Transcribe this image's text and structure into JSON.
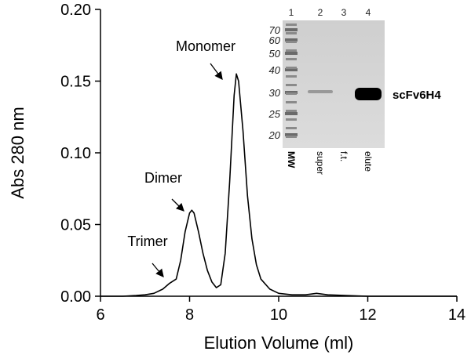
{
  "chart_data": {
    "type": "line",
    "x_label": "Elution Volume (ml)",
    "y_label": "Abs 280 nm",
    "x": [
      6,
      6.5,
      6.8,
      7.0,
      7.2,
      7.4,
      7.55,
      7.7,
      7.8,
      7.9,
      8.0,
      8.05,
      8.1,
      8.2,
      8.3,
      8.4,
      8.5,
      8.6,
      8.7,
      8.8,
      8.9,
      9.0,
      9.05,
      9.1,
      9.2,
      9.3,
      9.4,
      9.5,
      9.6,
      9.8,
      10.0,
      10.3,
      10.6,
      10.85,
      11.1,
      11.5,
      12,
      13,
      14
    ],
    "values": [
      0,
      0,
      0.0005,
      0.001,
      0.002,
      0.005,
      0.009,
      0.012,
      0.025,
      0.045,
      0.058,
      0.06,
      0.058,
      0.045,
      0.03,
      0.018,
      0.01,
      0.006,
      0.008,
      0.03,
      0.08,
      0.14,
      0.155,
      0.15,
      0.115,
      0.07,
      0.04,
      0.022,
      0.012,
      0.005,
      0.002,
      0.001,
      0.001,
      0.002,
      0.001,
      0.0005,
      0,
      0,
      0
    ],
    "color": "#000000",
    "xlim": [
      6,
      14
    ],
    "xticks": [
      6,
      8,
      10,
      12,
      14
    ],
    "ylim": [
      0,
      0.2
    ],
    "yticks": [
      {
        "value": 0,
        "label": "0.00"
      },
      {
        "value": 0.05,
        "label": "0.05"
      },
      {
        "value": 0.1,
        "label": "0.10"
      },
      {
        "value": 0.15,
        "label": "0.15"
      },
      {
        "value": 0.2,
        "label": "0.20"
      }
    ],
    "annotations": [
      "Monomer",
      "Dimer",
      "Trimer"
    ]
  },
  "inset": {
    "lane_numbers": [
      "1",
      "2",
      "3",
      "4"
    ],
    "markers": [
      "70",
      "60",
      "50",
      "40",
      "30",
      "25",
      "20"
    ],
    "lane_labels": [
      "MW",
      "super",
      "f.t.",
      "elute"
    ],
    "band_label": "scFv6H4"
  }
}
